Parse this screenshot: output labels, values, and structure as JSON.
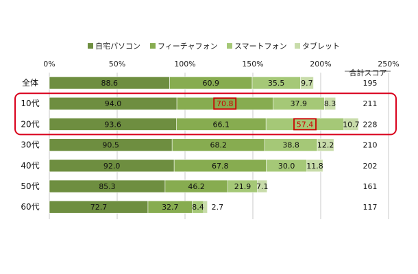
{
  "chart_data": {
    "type": "bar",
    "stacked": true,
    "orientation": "horizontal",
    "categories": [
      "全体",
      "10代",
      "20代",
      "30代",
      "40代",
      "50代",
      "60代"
    ],
    "series": [
      {
        "name": "自宅パソコン",
        "color": "#6e8e40",
        "values": [
          88.6,
          94.0,
          93.6,
          90.5,
          92.0,
          85.3,
          72.7
        ]
      },
      {
        "name": "フィーチャフォン",
        "color": "#87ac50",
        "values": [
          60.9,
          70.8,
          66.1,
          68.2,
          67.8,
          46.2,
          32.7
        ]
      },
      {
        "name": "スマートフォン",
        "color": "#a5c877",
        "values": [
          35.5,
          37.9,
          57.4,
          38.8,
          30.0,
          21.9,
          8.4
        ]
      },
      {
        "name": "タブレット",
        "color": "#c8dcaa",
        "values": [
          9.7,
          8.3,
          10.7,
          12.2,
          11.8,
          7.1,
          2.7
        ]
      }
    ],
    "value_labels": [
      [
        "88.6",
        "60.9",
        "35.5",
        "9.7"
      ],
      [
        "94.0",
        "70.8",
        "37.9",
        "8.3"
      ],
      [
        "93.6",
        "66.1",
        "57.4",
        "10.7"
      ],
      [
        "90.5",
        "68.2",
        "38.8",
        "12.2"
      ],
      [
        "92.0",
        "67.8",
        "30.0",
        "11.8"
      ],
      [
        "85.3",
        "46.2",
        "21.9",
        "7.1"
      ],
      [
        "72.7",
        "32.7",
        "8.4",
        "2.7"
      ]
    ],
    "totals_header": "合計スコア",
    "totals": [
      "195",
      "211",
      "228",
      "210",
      "202",
      "161",
      "117"
    ],
    "xlim": [
      0,
      250
    ],
    "xticks": [
      "0%",
      "50%",
      "100%",
      "150%",
      "200%",
      "250%"
    ],
    "grid": true,
    "legend_position": "top",
    "highlights": [
      {
        "category_index": 1,
        "series_index": 1,
        "color": "#cc0000"
      },
      {
        "category_index": 2,
        "series_index": 2,
        "color": "#cc0000"
      }
    ],
    "highlight_group": {
      "category_indices": [
        1,
        2
      ],
      "color": "#d9001b"
    }
  }
}
